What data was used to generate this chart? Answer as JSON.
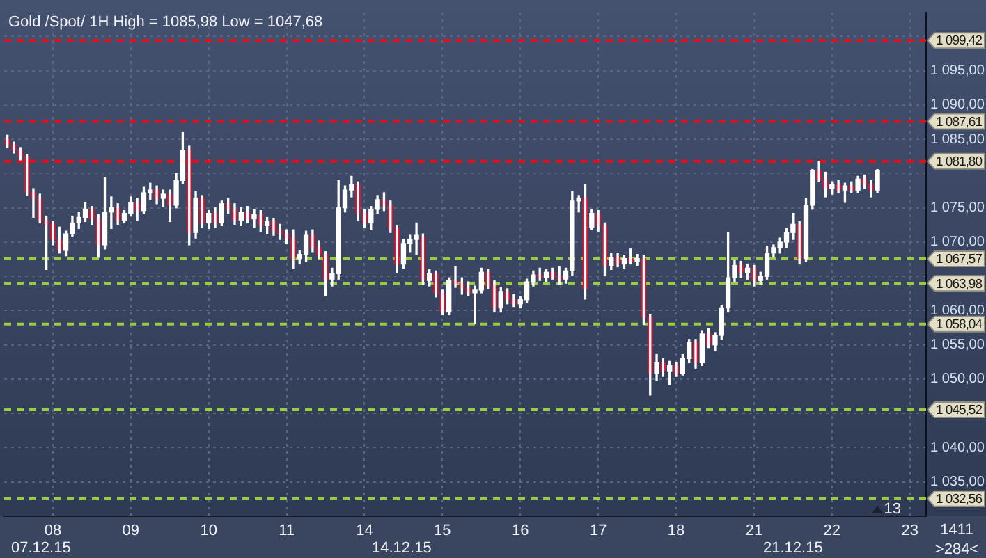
{
  "chart_data": {
    "type": "candlestick",
    "title": "Gold /Spot/ 1H High = 1085,98 Low = 1047,68",
    "categories": [
      null,
      null,
      null,
      null,
      null,
      null,
      null,
      "08",
      null,
      null,
      null,
      null,
      null,
      null,
      null,
      null,
      null,
      null,
      null,
      "09",
      null,
      null,
      null,
      null,
      null,
      null,
      null,
      null,
      null,
      null,
      null,
      "10",
      null,
      null,
      null,
      null,
      null,
      null,
      null,
      null,
      null,
      null,
      null,
      "11",
      null,
      null,
      null,
      null,
      null,
      null,
      null,
      null,
      null,
      null,
      null,
      "14",
      null,
      null,
      null,
      null,
      null,
      null,
      null,
      null,
      null,
      null,
      null,
      "15",
      null,
      null,
      null,
      null,
      null,
      null,
      null,
      null,
      null,
      null,
      null,
      "16",
      null,
      null,
      null,
      null,
      null,
      null,
      null,
      null,
      null,
      null,
      null,
      "17",
      null,
      null,
      null,
      null,
      null,
      null,
      null,
      null,
      null,
      null,
      null,
      "18",
      null,
      null,
      null,
      null,
      null,
      null,
      null,
      null,
      null,
      null,
      null,
      "21",
      null,
      null,
      null,
      null,
      null,
      null,
      null,
      null,
      null,
      null,
      null,
      "22",
      null,
      null,
      null,
      null,
      null,
      null,
      null,
      null,
      null,
      null,
      null,
      "23",
      null,
      null
    ],
    "ohlc": [
      [
        1085.0,
        1085.6,
        1083.8,
        1084.2
      ],
      [
        1084.2,
        1084.6,
        1083.0,
        1083.4
      ],
      [
        1083.4,
        1083.8,
        1082.0,
        1082.5
      ],
      [
        1082.5,
        1082.8,
        1076.8,
        1077.2
      ],
      [
        1077.2,
        1077.8,
        1073.6,
        1076.4
      ],
      [
        1076.4,
        1077.0,
        1072.8,
        1073.2
      ],
      [
        1073.2,
        1073.8,
        1066.0,
        1072.6
      ],
      [
        1072.6,
        1073.0,
        1069.6,
        1070.4
      ],
      [
        1070.4,
        1072.2,
        1068.4,
        1068.8
      ],
      [
        1068.8,
        1071.6,
        1068.0,
        1071.2
      ],
      [
        1071.2,
        1073.8,
        1070.8,
        1072.8
      ],
      [
        1072.8,
        1074.4,
        1072.0,
        1073.6
      ],
      [
        1073.6,
        1075.8,
        1073.0,
        1074.8
      ],
      [
        1074.8,
        1075.2,
        1072.6,
        1073.4
      ],
      [
        1073.4,
        1074.0,
        1067.8,
        1069.6
      ],
      [
        1069.6,
        1079.4,
        1069.0,
        1074.4
      ],
      [
        1074.4,
        1076.6,
        1072.0,
        1075.0
      ],
      [
        1075.0,
        1075.6,
        1072.6,
        1073.2
      ],
      [
        1073.2,
        1074.6,
        1072.8,
        1074.2
      ],
      [
        1074.2,
        1076.6,
        1073.8,
        1075.8
      ],
      [
        1075.8,
        1076.4,
        1073.2,
        1074.6
      ],
      [
        1074.6,
        1078.0,
        1074.2,
        1077.2
      ],
      [
        1077.2,
        1078.6,
        1076.2,
        1077.6
      ],
      [
        1077.6,
        1078.2,
        1075.6,
        1076.4
      ],
      [
        1076.4,
        1077.6,
        1075.2,
        1077.0
      ],
      [
        1077.0,
        1077.6,
        1073.0,
        1075.4
      ],
      [
        1075.4,
        1080.0,
        1075.0,
        1079.0
      ],
      [
        1079.0,
        1085.98,
        1078.6,
        1083.4
      ],
      [
        1083.4,
        1084.0,
        1069.6,
        1071.4
      ],
      [
        1071.4,
        1077.4,
        1070.6,
        1076.4
      ],
      [
        1076.4,
        1076.8,
        1072.2,
        1072.8
      ],
      [
        1072.8,
        1074.6,
        1072.0,
        1074.2
      ],
      [
        1074.2,
        1075.0,
        1072.2,
        1072.8
      ],
      [
        1072.8,
        1076.0,
        1072.4,
        1075.6
      ],
      [
        1075.6,
        1076.4,
        1074.2,
        1074.8
      ],
      [
        1074.8,
        1075.6,
        1072.6,
        1073.2
      ],
      [
        1073.2,
        1075.0,
        1072.4,
        1074.4
      ],
      [
        1074.4,
        1075.2,
        1072.8,
        1073.4
      ],
      [
        1073.4,
        1074.8,
        1072.2,
        1074.0
      ],
      [
        1074.0,
        1074.6,
        1071.6,
        1072.4
      ],
      [
        1072.4,
        1073.6,
        1071.2,
        1073.0
      ],
      [
        1073.0,
        1073.4,
        1071.0,
        1071.6
      ],
      [
        1071.6,
        1072.6,
        1070.4,
        1071.2
      ],
      [
        1071.2,
        1071.8,
        1069.8,
        1070.6
      ],
      [
        1070.6,
        1071.8,
        1066.2,
        1067.6
      ],
      [
        1067.6,
        1068.8,
        1066.8,
        1068.2
      ],
      [
        1068.2,
        1071.6,
        1067.2,
        1071.0
      ],
      [
        1071.0,
        1071.8,
        1068.6,
        1069.2
      ],
      [
        1069.2,
        1070.2,
        1067.6,
        1068.2
      ],
      [
        1068.2,
        1068.6,
        1062.2,
        1064.6
      ],
      [
        1064.6,
        1066.2,
        1063.6,
        1065.4
      ],
      [
        1065.4,
        1079.0,
        1064.6,
        1075.0
      ],
      [
        1075.0,
        1078.2,
        1074.4,
        1077.6
      ],
      [
        1077.6,
        1079.6,
        1076.6,
        1078.4
      ],
      [
        1078.4,
        1078.8,
        1073.2,
        1074.2
      ],
      [
        1074.2,
        1074.8,
        1072.2,
        1072.8
      ],
      [
        1072.8,
        1075.2,
        1071.8,
        1074.8
      ],
      [
        1074.8,
        1076.8,
        1074.2,
        1076.2
      ],
      [
        1076.2,
        1077.2,
        1074.6,
        1075.4
      ],
      [
        1075.4,
        1076.0,
        1071.4,
        1072.0
      ],
      [
        1072.0,
        1072.4,
        1065.6,
        1066.8
      ],
      [
        1066.8,
        1070.4,
        1066.2,
        1069.8
      ],
      [
        1069.8,
        1071.0,
        1068.6,
        1070.4
      ],
      [
        1070.4,
        1072.8,
        1068.2,
        1071.0
      ],
      [
        1070.8,
        1071.2,
        1063.8,
        1064.4
      ],
      [
        1064.4,
        1066.0,
        1063.6,
        1065.4
      ],
      [
        1065.4,
        1065.8,
        1062.0,
        1062.6
      ],
      [
        1062.6,
        1063.0,
        1059.4,
        1059.8
      ],
      [
        1059.8,
        1064.8,
        1059.4,
        1064.4
      ],
      [
        1064.4,
        1066.4,
        1063.4,
        1064.0
      ],
      [
        1064.0,
        1064.8,
        1062.4,
        1063.2
      ],
      [
        1063.2,
        1064.2,
        1062.2,
        1062.6
      ],
      [
        1062.6,
        1063.6,
        1058.1,
        1063.0
      ],
      [
        1063.0,
        1066.2,
        1062.6,
        1065.6
      ],
      [
        1065.6,
        1066.0,
        1063.2,
        1063.6
      ],
      [
        1063.6,
        1064.4,
        1059.8,
        1060.4
      ],
      [
        1060.4,
        1063.4,
        1059.8,
        1062.8
      ],
      [
        1062.8,
        1063.2,
        1061.0,
        1061.6
      ],
      [
        1061.6,
        1062.4,
        1060.6,
        1061.0
      ],
      [
        1061.0,
        1062.0,
        1060.4,
        1061.6
      ],
      [
        1061.6,
        1064.6,
        1061.2,
        1064.2
      ],
      [
        1064.2,
        1065.8,
        1063.6,
        1065.2
      ],
      [
        1065.2,
        1066.2,
        1064.4,
        1064.8
      ],
      [
        1064.8,
        1066.0,
        1064.2,
        1065.6
      ],
      [
        1065.6,
        1066.2,
        1064.6,
        1065.0
      ],
      [
        1065.0,
        1066.4,
        1063.8,
        1064.6
      ],
      [
        1064.6,
        1066.2,
        1064.0,
        1065.8
      ],
      [
        1065.8,
        1077.4,
        1065.2,
        1076.0
      ],
      [
        1076.0,
        1076.8,
        1074.4,
        1076.4
      ],
      [
        1076.4,
        1078.4,
        1061.7,
        1063.2
      ],
      [
        1072.2,
        1074.8,
        1071.8,
        1074.2
      ],
      [
        1074.2,
        1074.6,
        1071.6,
        1072.4
      ],
      [
        1072.4,
        1072.8,
        1065.1,
        1066.6
      ],
      [
        1066.6,
        1068.4,
        1066.0,
        1067.8
      ],
      [
        1067.8,
        1068.4,
        1066.4,
        1066.8
      ],
      [
        1066.8,
        1068.0,
        1066.2,
        1067.6
      ],
      [
        1067.6,
        1069.0,
        1066.8,
        1067.2
      ],
      [
        1067.2,
        1068.2,
        1066.6,
        1067.6
      ],
      [
        1067.6,
        1068.0,
        1058.0,
        1059.0
      ],
      [
        1059.0,
        1059.4,
        1047.68,
        1050.8
      ],
      [
        1050.8,
        1053.6,
        1049.8,
        1052.4
      ],
      [
        1052.4,
        1053.0,
        1050.4,
        1051.2
      ],
      [
        1051.2,
        1052.6,
        1049.2,
        1052.0
      ],
      [
        1052.0,
        1052.4,
        1050.4,
        1050.8
      ],
      [
        1050.8,
        1053.6,
        1050.6,
        1053.0
      ],
      [
        1053.0,
        1055.8,
        1052.4,
        1055.4
      ],
      [
        1055.4,
        1055.8,
        1051.6,
        1052.4
      ],
      [
        1052.4,
        1057.0,
        1052.0,
        1056.6
      ],
      [
        1056.6,
        1057.4,
        1054.6,
        1055.0
      ],
      [
        1055.0,
        1056.8,
        1054.2,
        1056.4
      ],
      [
        1056.4,
        1060.8,
        1055.8,
        1060.4
      ],
      [
        1060.4,
        1071.4,
        1059.8,
        1064.8
      ],
      [
        1064.8,
        1067.4,
        1064.2,
        1066.6
      ],
      [
        1066.6,
        1067.2,
        1064.8,
        1065.6
      ],
      [
        1065.6,
        1066.8,
        1064.6,
        1066.2
      ],
      [
        1066.2,
        1066.6,
        1063.6,
        1064.4
      ],
      [
        1064.4,
        1065.6,
        1063.8,
        1065.0
      ],
      [
        1065.0,
        1069.4,
        1064.6,
        1068.4
      ],
      [
        1068.4,
        1069.6,
        1067.8,
        1069.2
      ],
      [
        1069.2,
        1070.6,
        1068.4,
        1070.0
      ],
      [
        1070.0,
        1072.0,
        1069.2,
        1071.4
      ],
      [
        1071.4,
        1074.2,
        1070.4,
        1072.6
      ],
      [
        1072.6,
        1073.0,
        1066.8,
        1067.6
      ],
      [
        1067.6,
        1076.4,
        1067.2,
        1075.4
      ],
      [
        1075.4,
        1080.6,
        1074.8,
        1080.4
      ],
      [
        1080.4,
        1081.8,
        1078.8,
        1079.2
      ],
      [
        1079.2,
        1080.2,
        1076.6,
        1077.8
      ],
      [
        1077.8,
        1078.8,
        1077.0,
        1078.4
      ],
      [
        1078.4,
        1079.0,
        1077.2,
        1077.6
      ],
      [
        1077.6,
        1078.6,
        1075.8,
        1078.2
      ],
      [
        1078.2,
        1078.8,
        1077.2,
        1077.6
      ],
      [
        1077.6,
        1079.6,
        1077.2,
        1079.2
      ],
      [
        1079.2,
        1079.8,
        1077.8,
        1078.4
      ],
      [
        1078.4,
        1079.0,
        1076.6,
        1077.6
      ],
      [
        1077.6,
        1080.6,
        1077.2,
        1080.4
      ],
      null,
      null,
      null,
      null,
      null,
      null,
      null
    ],
    "color": "#ffffff",
    "colors": [
      "#e3122f",
      "#e3122f",
      "#e3122f",
      "#e3122f",
      "#e3122f",
      "#e3122f",
      "#e3122f",
      "#e3122f",
      "#e3122f",
      "#ffffff",
      "#ffffff",
      "#ffffff",
      "#ffffff",
      "#e3122f",
      "#e3122f",
      "#ffffff",
      "#ffffff",
      "#e3122f",
      "#ffffff",
      "#ffffff",
      "#e3122f",
      "#ffffff",
      "#ffffff",
      "#e3122f",
      "#ffffff",
      "#e3122f",
      "#ffffff",
      "#ffffff",
      "#e3122f",
      "#ffffff",
      "#e3122f",
      "#ffffff",
      "#e3122f",
      "#ffffff",
      "#e3122f",
      "#e3122f",
      "#ffffff",
      "#e3122f",
      "#ffffff",
      "#e3122f",
      "#ffffff",
      "#e3122f",
      "#e3122f",
      "#e3122f",
      "#e3122f",
      "#ffffff",
      "#ffffff",
      "#e3122f",
      "#e3122f",
      "#e3122f",
      "#ffffff",
      "#ffffff",
      "#ffffff",
      "#ffffff",
      "#e3122f",
      "#e3122f",
      "#ffffff",
      "#ffffff",
      "#e3122f",
      "#e3122f",
      "#e3122f",
      "#ffffff",
      "#ffffff",
      "#ffffff",
      "#e3122f",
      "#ffffff",
      "#e3122f",
      "#e3122f",
      "#ffffff",
      "#e3122f",
      "#e3122f",
      "#e3122f",
      "#ffffff",
      "#ffffff",
      "#e3122f",
      "#e3122f",
      "#ffffff",
      "#e3122f",
      "#e3122f",
      "#ffffff",
      "#ffffff",
      "#ffffff",
      "#e3122f",
      "#ffffff",
      "#e3122f",
      "#e3122f",
      "#ffffff",
      "#ffffff",
      "#ffffff",
      "#e3122f",
      "#ffffff",
      "#e3122f",
      "#e3122f",
      "#ffffff",
      "#e3122f",
      "#ffffff",
      "#e3122f",
      "#ffffff",
      "#e3122f",
      "#e3122f",
      "#ffffff",
      "#e3122f",
      "#ffffff",
      "#e3122f",
      "#ffffff",
      "#ffffff",
      "#e3122f",
      "#ffffff",
      "#e3122f",
      "#ffffff",
      "#ffffff",
      "#ffffff",
      "#ffffff",
      "#e3122f",
      "#ffffff",
      "#e3122f",
      "#ffffff",
      "#ffffff",
      "#ffffff",
      "#ffffff",
      "#ffffff",
      "#ffffff",
      "#e3122f",
      "#ffffff",
      "#ffffff",
      "#e3122f",
      "#e3122f",
      "#ffffff",
      "#e3122f",
      "#ffffff",
      "#e3122f",
      "#ffffff",
      "#e3122f",
      "#e3122f",
      "#ffffff",
      null,
      null,
      null,
      null,
      null,
      null,
      null
    ],
    "ylim": [
      1030,
      1103.5
    ],
    "yticks": [
      {
        "value": 1035,
        "label": "1 035,00"
      },
      {
        "value": 1040,
        "label": "1 040,00"
      },
      {
        "value": 1045,
        "label": null
      },
      {
        "value": 1050,
        "label": "1 050,00"
      },
      {
        "value": 1055,
        "label": "1 055,00"
      },
      {
        "value": 1060,
        "label": "1 060,00"
      },
      {
        "value": 1065,
        "label": null
      },
      {
        "value": 1070,
        "label": "1 070,00"
      },
      {
        "value": 1075,
        "label": "1 075,00"
      },
      {
        "value": 1080,
        "label": null
      },
      {
        "value": 1085,
        "label": "1 085,00"
      },
      {
        "value": 1090,
        "label": "1 090,00"
      },
      {
        "value": 1095,
        "label": "1 095,00"
      },
      {
        "value": 1100,
        "label": null
      }
    ],
    "grid": true,
    "ref_lines": [
      {
        "axis": "y",
        "value": 1099.42,
        "label": "1 099,42",
        "color": "#e3101c",
        "line_style": "dashed"
      },
      {
        "axis": "y",
        "value": 1087.61,
        "label": "1 087,61",
        "color": "#e3101c",
        "line_style": "dashed"
      },
      {
        "axis": "y",
        "value": 1081.8,
        "label": "1 081,80",
        "color": "#e3101c",
        "line_style": "dashed"
      },
      {
        "axis": "y",
        "value": 1067.57,
        "label": "1 067,57",
        "color": "#98cc45",
        "line_style": "dashed"
      },
      {
        "axis": "y",
        "value": 1063.98,
        "label": "1 063,98",
        "color": "#98cc45",
        "line_style": "dashed"
      },
      {
        "axis": "y",
        "value": 1058.04,
        "label": "1 058,04",
        "color": "#98cc45",
        "line_style": "dashed"
      },
      {
        "axis": "y",
        "value": 1045.52,
        "label": "1 045,52",
        "color": "#98cc45",
        "line_style": "dashed"
      },
      {
        "axis": "y",
        "value": 1032.56,
        "label": "1 032,56",
        "color": "#98cc45",
        "line_style": "dashed"
      }
    ],
    "annotations": [
      "07.12.15",
      "14.12.15",
      "21.12.15",
      "13",
      "1411",
      ">284<"
    ]
  }
}
